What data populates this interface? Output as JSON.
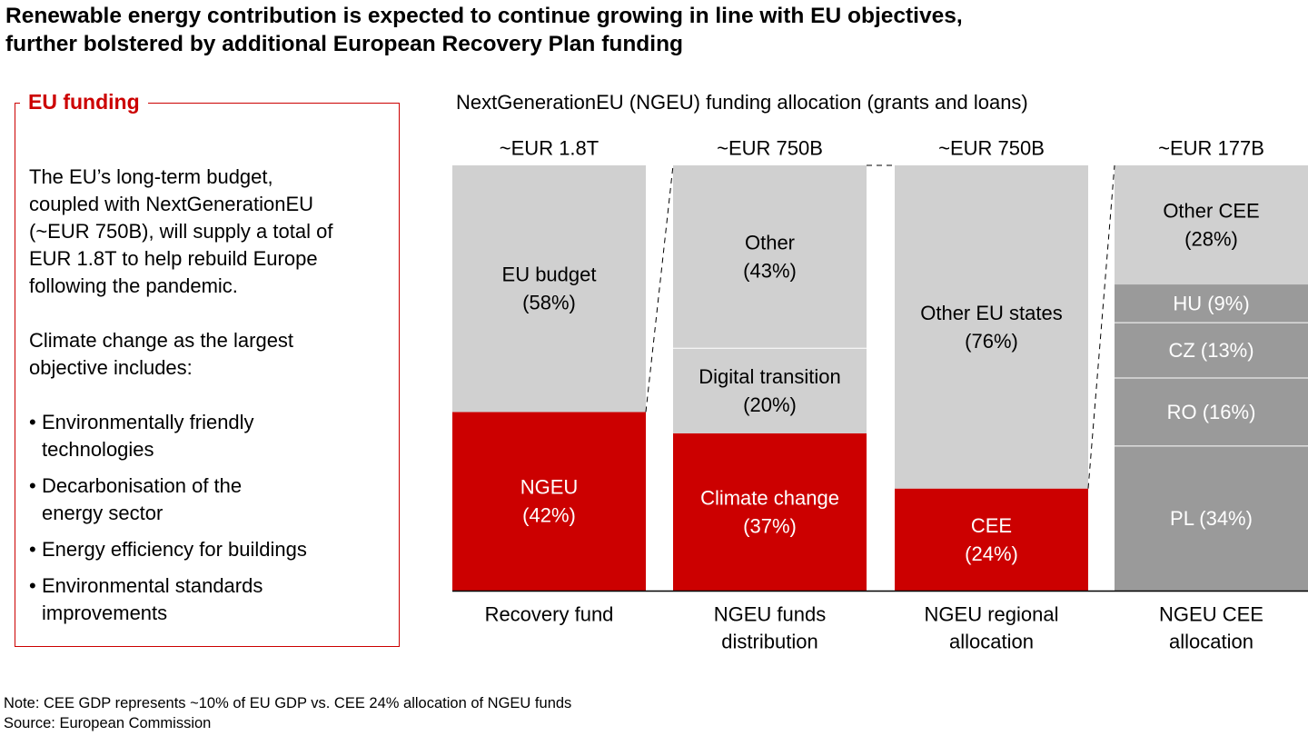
{
  "title": {
    "line1": "Renewable energy contribution is expected to continue growing in line with EU objectives,",
    "line2": "further bolstered by additional European Recovery Plan funding"
  },
  "panel": {
    "heading": "EU funding",
    "paragraph1": [
      "The EU’s long-term budget,",
      "coupled with NextGenerationEU",
      "(~EUR 750B), will supply a total of",
      "EUR 1.8T to help rebuild Europe",
      "following the pandemic."
    ],
    "paragraph2": [
      "Climate change as the largest",
      "objective includes:"
    ],
    "bullets": [
      [
        "Environmentally friendly",
        "technologies"
      ],
      [
        "Decarbonisation of the",
        "energy sector"
      ],
      [
        "Energy efficiency for buildings"
      ],
      [
        "Environmental standards",
        "improvements"
      ]
    ]
  },
  "chart_data": {
    "type": "bar",
    "stacked": true,
    "normalized": true,
    "title": "NextGenerationEU (NGEU) funding allocation (grants and loans)",
    "colors": {
      "red": "#cc0000",
      "light_gray": "#d0d0d0",
      "dark_gray": "#9a9a9a",
      "white_text": "#ffffff",
      "black_text": "#000000"
    },
    "bars": [
      {
        "category": [
          "Recovery fund"
        ],
        "total": "~EUR 1.8T",
        "segments": [
          {
            "label": [
              "NGEU",
              "(42%)"
            ],
            "value": 42,
            "color": "red"
          },
          {
            "label": [
              "EU budget",
              "(58%)"
            ],
            "value": 58,
            "color": "light_gray"
          }
        ]
      },
      {
        "category": [
          "NGEU funds",
          "distribution"
        ],
        "total": "~EUR 750B",
        "segments": [
          {
            "label": [
              "Climate change",
              "(37%)"
            ],
            "value": 37,
            "color": "red"
          },
          {
            "label": [
              "Digital transition",
              "(20%)"
            ],
            "value": 20,
            "color": "light_gray"
          },
          {
            "label": [
              "Other",
              "(43%)"
            ],
            "value": 43,
            "color": "light_gray"
          }
        ]
      },
      {
        "category": [
          "NGEU regional",
          "allocation"
        ],
        "total": "~EUR 750B",
        "segments": [
          {
            "label": [
              "CEE",
              "(24%)"
            ],
            "value": 24,
            "color": "red"
          },
          {
            "label": [
              "Other EU states",
              "(76%)"
            ],
            "value": 76,
            "color": "light_gray"
          }
        ]
      },
      {
        "category": [
          "NGEU CEE",
          "allocation"
        ],
        "total": "~EUR 177B",
        "segments": [
          {
            "label": [
              "PL (34%)"
            ],
            "value": 34,
            "color": "dark_gray"
          },
          {
            "label": [
              "RO (16%)"
            ],
            "value": 16,
            "color": "dark_gray"
          },
          {
            "label": [
              "CZ (13%)"
            ],
            "value": 13,
            "color": "dark_gray"
          },
          {
            "label": [
              "HU (9%)"
            ],
            "value": 9,
            "color": "dark_gray"
          },
          {
            "label": [
              "Other CEE",
              "(28%)"
            ],
            "value": 28,
            "color": "light_gray"
          }
        ]
      }
    ],
    "connectors": [
      {
        "from_bar": 0,
        "to_bar": 1,
        "from_level": 42,
        "to_level": 100
      },
      {
        "from_bar": 1,
        "to_bar": 2,
        "from_level": 100,
        "to_level": 100
      },
      {
        "from_bar": 2,
        "to_bar": 3,
        "from_level": 24,
        "to_level": 100
      }
    ]
  },
  "notes": {
    "note": "Note: CEE GDP represents ~10% of EU GDP vs. CEE 24% allocation of NGEU funds",
    "source": "Source: European Commission"
  }
}
